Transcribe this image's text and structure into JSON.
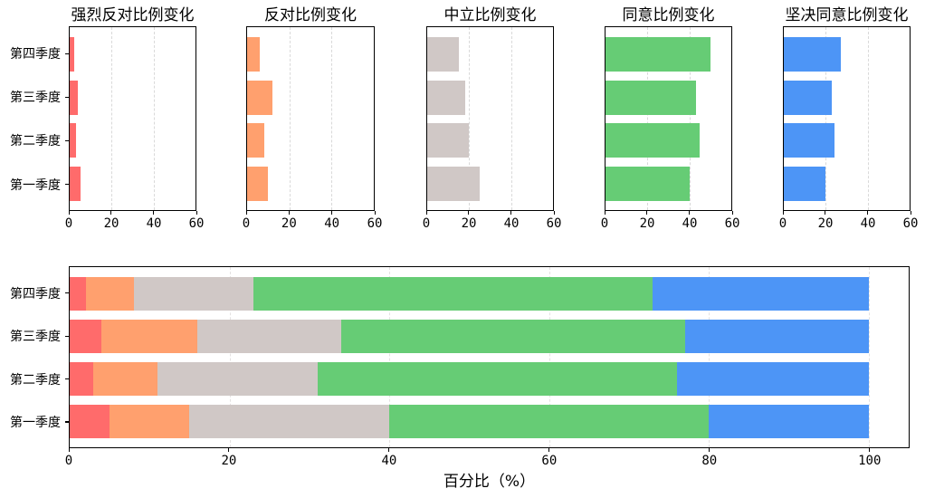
{
  "figure": {
    "background": "#ffffff",
    "row_order": "top_to_bottom"
  },
  "categories": [
    "第四季度",
    "第三季度",
    "第二季度",
    "第一季度"
  ],
  "colors": {
    "strongly_oppose": "#FF6B6B",
    "oppose": "#FFA06E",
    "neutral": "#D0C8C6",
    "agree": "#66CC75",
    "strongly_agree": "#4D95F6",
    "spine": "#000000",
    "grid_small": "#d9d9d9",
    "grid_stacked": "#e4e2e2"
  },
  "chart_data": [
    {
      "type": "bar",
      "orientation": "horizontal",
      "title": "强烈反对比例变化",
      "series_name": "强烈反对",
      "categories": [
        "第四季度",
        "第三季度",
        "第二季度",
        "第一季度"
      ],
      "values": [
        2,
        4,
        3,
        5
      ],
      "xlim": [
        0,
        60
      ],
      "xticks": [
        0,
        20,
        40,
        60
      ],
      "color": "#FF6B6B",
      "grid": "dashed",
      "legend": "none"
    },
    {
      "type": "bar",
      "orientation": "horizontal",
      "title": "反对比例变化",
      "series_name": "反对",
      "categories": [
        "第四季度",
        "第三季度",
        "第二季度",
        "第一季度"
      ],
      "values": [
        6,
        12,
        8,
        10
      ],
      "xlim": [
        0,
        60
      ],
      "xticks": [
        0,
        20,
        40,
        60
      ],
      "color": "#FFA06E",
      "grid": "dashed",
      "legend": "none"
    },
    {
      "type": "bar",
      "orientation": "horizontal",
      "title": "中立比例变化",
      "series_name": "中立",
      "categories": [
        "第四季度",
        "第三季度",
        "第二季度",
        "第一季度"
      ],
      "values": [
        15,
        18,
        20,
        25
      ],
      "xlim": [
        0,
        60
      ],
      "xticks": [
        0,
        20,
        40,
        60
      ],
      "color": "#D0C8C6",
      "grid": "dashed",
      "legend": "none"
    },
    {
      "type": "bar",
      "orientation": "horizontal",
      "title": "同意比例变化",
      "series_name": "同意",
      "categories": [
        "第四季度",
        "第三季度",
        "第二季度",
        "第一季度"
      ],
      "values": [
        50,
        43,
        45,
        40
      ],
      "xlim": [
        0,
        60
      ],
      "xticks": [
        0,
        20,
        40,
        60
      ],
      "color": "#66CC75",
      "grid": "dashed",
      "legend": "none"
    },
    {
      "type": "bar",
      "orientation": "horizontal",
      "title": "坚决同意比例变化",
      "series_name": "坚决同意",
      "categories": [
        "第四季度",
        "第三季度",
        "第二季度",
        "第一季度"
      ],
      "values": [
        27,
        23,
        24,
        20
      ],
      "xlim": [
        0,
        60
      ],
      "xticks": [
        0,
        20,
        40,
        60
      ],
      "color": "#4D95F6",
      "grid": "dashed",
      "legend": "none"
    },
    {
      "type": "stacked-bar",
      "orientation": "horizontal",
      "title": "",
      "xlabel": "百分比（%）",
      "categories": [
        "第四季度",
        "第三季度",
        "第二季度",
        "第一季度"
      ],
      "xlim": [
        0,
        105
      ],
      "xticks": [
        0,
        20,
        40,
        60,
        80,
        100
      ],
      "grid": "dotted",
      "legend": "none",
      "series": [
        {
          "name": "强烈反对",
          "color": "#FF6B6B",
          "values": [
            2,
            4,
            3,
            5
          ]
        },
        {
          "name": "反对",
          "color": "#FFA06E",
          "values": [
            6,
            12,
            8,
            10
          ]
        },
        {
          "name": "中立",
          "color": "#D0C8C6",
          "values": [
            15,
            18,
            20,
            25
          ]
        },
        {
          "name": "同意",
          "color": "#66CC75",
          "values": [
            50,
            43,
            45,
            40
          ]
        },
        {
          "name": "坚决同意",
          "color": "#4D95F6",
          "values": [
            27,
            23,
            24,
            20
          ]
        }
      ]
    }
  ]
}
